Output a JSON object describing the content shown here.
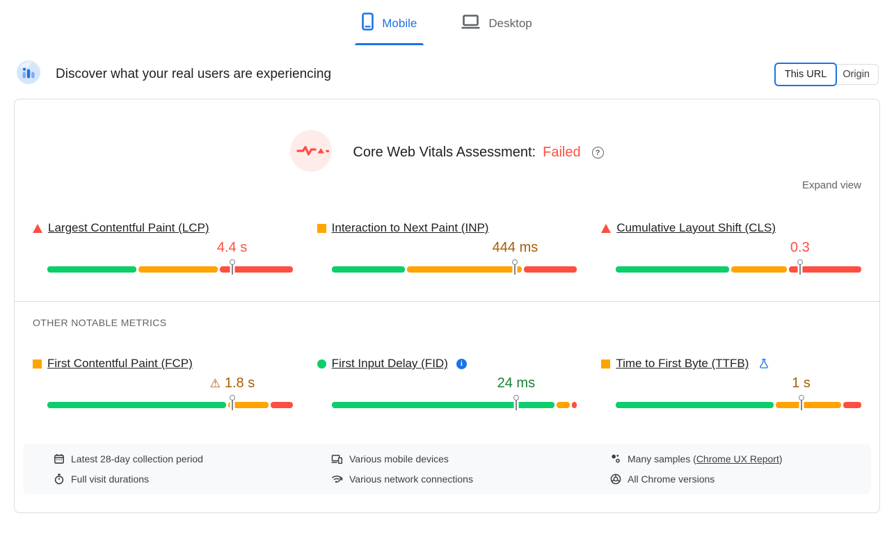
{
  "tabs": {
    "items": [
      {
        "label": "Mobile",
        "active": true
      },
      {
        "label": "Desktop",
        "active": false
      }
    ]
  },
  "field_data_header": {
    "title": "Discover what your real users are experiencing",
    "scope_options": [
      {
        "label": "This URL",
        "selected": true
      },
      {
        "label": "Origin",
        "selected": false
      }
    ]
  },
  "assessment": {
    "title": "Core Web Vitals Assessment:",
    "verdict": "Failed",
    "help_icon": "help-icon",
    "expand_label": "Expand view"
  },
  "core_web_vitals": [
    {
      "label": "Largest Contentful Paint (LCP)",
      "status": "poor",
      "value": "4.4 s",
      "marker_pct": 75.3,
      "segments": [
        {
          "status": "good",
          "pct": 36.8
        },
        {
          "status": "ni",
          "pct": 32.9
        },
        {
          "status": "poor",
          "pct": 30.3
        }
      ]
    },
    {
      "label": "Interaction to Next Paint (INP)",
      "status": "ni",
      "value": "444 ms",
      "marker_pct": 74.8,
      "segments": [
        {
          "status": "good",
          "pct": 30.3
        },
        {
          "status": "ni",
          "pct": 47.7
        },
        {
          "status": "poor",
          "pct": 22.0
        }
      ]
    },
    {
      "label": "Cumulative Layout Shift (CLS)",
      "status": "poor",
      "value": "0.3",
      "marker_pct": 75.0,
      "segments": [
        {
          "status": "good",
          "pct": 47.0
        },
        {
          "status": "ni",
          "pct": 23.0
        },
        {
          "status": "poor",
          "pct": 30.0
        }
      ]
    }
  ],
  "other_metrics_heading": "OTHER NOTABLE METRICS",
  "other_metrics": [
    {
      "label": "First Contentful Paint (FCP)",
      "status": "ni",
      "value": "1.8 s",
      "value_warning": true,
      "marker_pct": 75.4,
      "segments": [
        {
          "status": "good",
          "pct": 74.0
        },
        {
          "status": "ni",
          "pct": 17.0
        },
        {
          "status": "poor",
          "pct": 9.0
        }
      ]
    },
    {
      "label": "First Input Delay (FID)",
      "status": "good",
      "value": "24 ms",
      "info_icon": true,
      "marker_pct": 75.2,
      "segments": [
        {
          "status": "good",
          "pct": 92.5
        },
        {
          "status": "ni",
          "pct": 5.5
        },
        {
          "status": "poor",
          "pct": 2.0
        }
      ]
    },
    {
      "label": "Time to First Byte (TTFB)",
      "status": "ni",
      "value": "1 s",
      "experimental_icon": true,
      "marker_pct": 75.5,
      "segments": [
        {
          "status": "good",
          "pct": 65.5
        },
        {
          "status": "ni",
          "pct": 27.0
        },
        {
          "status": "poor",
          "pct": 7.5
        }
      ]
    }
  ],
  "data_sources": [
    {
      "icon": "calendar-icon",
      "text": "Latest 28-day collection period"
    },
    {
      "icon": "devices-icon",
      "text": "Various mobile devices"
    },
    {
      "icon": "samples-icon",
      "prefix": "Many samples (",
      "link": "Chrome UX Report",
      "suffix": ")"
    },
    {
      "icon": "stopwatch-icon",
      "text": "Full visit durations"
    },
    {
      "icon": "network-icon",
      "text": "Various network connections"
    },
    {
      "icon": "chrome-icon",
      "text": "All Chrome versions"
    }
  ],
  "palette": {
    "segment": {
      "good": "#0cce6b",
      "ni": "#ffa400",
      "poor": "#ff4e42"
    },
    "value_text": {
      "good": "#188038",
      "ni": "#a85d00",
      "poor": "#ff4e42"
    },
    "accent_blue": "#1a73e8"
  }
}
